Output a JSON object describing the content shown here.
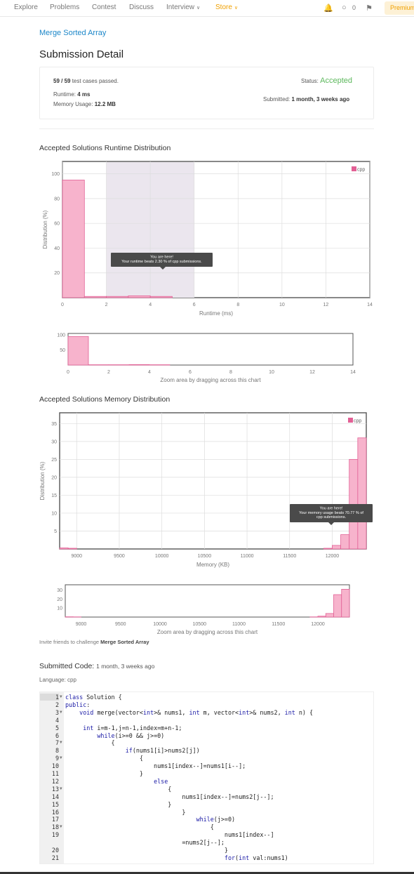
{
  "nav": {
    "items": [
      "Explore",
      "Problems",
      "Contest",
      "Discuss",
      "Interview"
    ],
    "store": "Store",
    "streak_count": "0",
    "premium": "Premium"
  },
  "problem": {
    "link": "Merge Sorted Array",
    "page_title": "Submission Detail"
  },
  "summary": {
    "cases_value": "59 / 59",
    "cases_label": "test cases passed.",
    "runtime_label": "Runtime:",
    "runtime_value": "4 ms",
    "memory_label": "Memory Usage:",
    "memory_value": "12.2 MB",
    "status_label": "Status:",
    "status_value": "Accepted",
    "submitted_label": "Submitted:",
    "submitted_value": "1 month, 3 weeks ago"
  },
  "colors": {
    "accent": "#1c87c9",
    "accepted": "#5cb85c",
    "bar": "#f7b3cc",
    "bar_stroke": "#e26095",
    "store": "#f0a000"
  },
  "chart_data": [
    {
      "type": "bar",
      "title": "Accepted Solutions Runtime Distribution",
      "xlabel": "Runtime (ms)",
      "ylabel": "Distribution (%)",
      "legend": "cpp",
      "legend_position": "top-right",
      "xlim": [
        0,
        14
      ],
      "ylim": [
        0,
        110
      ],
      "x_ticks": [
        0,
        2,
        4,
        6,
        8,
        10,
        12,
        14
      ],
      "y_ticks": [
        20,
        40,
        60,
        80,
        100
      ],
      "bin_width": 1,
      "x": [
        0,
        1,
        2,
        3,
        4
      ],
      "values": [
        95,
        1,
        1,
        1.5,
        1
      ],
      "highlight_range": [
        2,
        6
      ],
      "tooltip_title": "You are here!",
      "tooltip_text": "Your runtime beats 2.30 % of cpp submissions.",
      "zoom": {
        "y_ticks": [
          50,
          100
        ],
        "ylim": [
          0,
          105
        ],
        "caption": "Zoom area by dragging across this chart"
      }
    },
    {
      "type": "bar",
      "title": "Accepted Solutions Memory Distribution",
      "xlabel": "Memory (KB)",
      "ylabel": "Distribution (%)",
      "legend": "cpp",
      "legend_position": "top-right",
      "xlim": [
        8800,
        12400
      ],
      "ylim": [
        0,
        38
      ],
      "x_ticks": [
        9000,
        9500,
        10000,
        10500,
        11000,
        11500,
        12000
      ],
      "y_ticks": [
        5,
        10,
        15,
        20,
        25,
        30,
        35
      ],
      "bin_width": 100,
      "x": [
        8800,
        8900,
        11900,
        12000,
        12100,
        12200,
        12300
      ],
      "values": [
        0.3,
        0.2,
        0.2,
        1,
        4,
        25,
        31
      ],
      "extra_x": [
        12400
      ],
      "extra_values": [
        30
      ],
      "tooltip_title": "You are here!",
      "tooltip_text": "Your memory usage beats 70.77 % of cpp submissions.",
      "zoom": {
        "y_ticks": [
          10,
          20,
          30
        ],
        "ylim": [
          0,
          36
        ],
        "caption": "Zoom area by dragging across this chart"
      }
    }
  ],
  "invite": {
    "prefix": "Invite friends to challenge",
    "problem": "Merge Sorted Array"
  },
  "code_section": {
    "title": "Submitted Code:",
    "time": "1 month, 3 weeks ago",
    "language": "Language: cpp",
    "lines": [
      {
        "n": "1",
        "fold": true,
        "text": "class Solution {"
      },
      {
        "n": "2",
        "fold": false,
        "text": "public:"
      },
      {
        "n": "3",
        "fold": true,
        "text": "    void merge(vector<int>& nums1, int m, vector<int>& nums2, int n) {"
      },
      {
        "n": "4",
        "fold": false,
        "text": ""
      },
      {
        "n": "5",
        "fold": false,
        "text": "     int i=m-1,j=n-1,index=m+n-1;"
      },
      {
        "n": "6",
        "fold": false,
        "text": "         while(i>=0 && j>=0)"
      },
      {
        "n": "7",
        "fold": true,
        "text": "             {"
      },
      {
        "n": "8",
        "fold": false,
        "text": "                 if(nums1[i]>nums2[j])"
      },
      {
        "n": "9",
        "fold": true,
        "text": "                     {"
      },
      {
        "n": "10",
        "fold": false,
        "text": "                         nums1[index--]=nums1[i--];"
      },
      {
        "n": "11",
        "fold": false,
        "text": "                     }"
      },
      {
        "n": "12",
        "fold": false,
        "text": "                         else"
      },
      {
        "n": "13",
        "fold": true,
        "text": "                             {"
      },
      {
        "n": "14",
        "fold": false,
        "text": "                                 nums1[index--]=nums2[j--];"
      },
      {
        "n": "15",
        "fold": false,
        "text": "                             }"
      },
      {
        "n": "16",
        "fold": false,
        "text": "                                 }"
      },
      {
        "n": "17",
        "fold": false,
        "text": "                                     while(j>=0)"
      },
      {
        "n": "18",
        "fold": true,
        "text": "                                         {"
      },
      {
        "n": "19",
        "fold": false,
        "text": "                                             nums1[index--]"
      },
      {
        "n": "",
        "fold": false,
        "text": "                                 =nums2[j--];"
      },
      {
        "n": "20",
        "fold": false,
        "text": "                                             }"
      },
      {
        "n": "21",
        "fold": false,
        "text": "                                             for(int val:nums1)"
      }
    ]
  }
}
